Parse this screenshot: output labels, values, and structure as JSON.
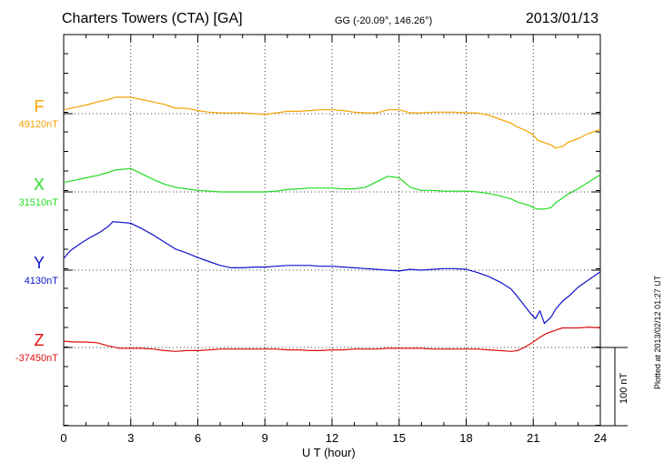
{
  "header": {
    "title": "Charters Towers (CTA)  [GA]",
    "coords": "GG (-20.09°, 146.26°)",
    "date": "2013/01/13"
  },
  "footer": {
    "plotted": "Plotted at 2013/02/12 01:27 UT",
    "scale_label": "100 nT"
  },
  "chart_data": {
    "type": "line",
    "title": "Charters Towers (CTA)  [GA]",
    "xlabel": "U T (hour)",
    "xlim": [
      0,
      24
    ],
    "xticks": [
      "0",
      "3",
      "6",
      "9",
      "12",
      "15",
      "18",
      "21",
      "24"
    ],
    "grid": true,
    "scale_bar_nT": 100,
    "series": [
      {
        "name": "F",
        "baseline_label": "49120nT",
        "baseline": 49120,
        "color": "#f5a200",
        "x": [
          0,
          0.5,
          1,
          1.5,
          2,
          2.3,
          3,
          3.5,
          4,
          4.5,
          5,
          5.5,
          6,
          6.5,
          7,
          7.5,
          8,
          8.5,
          9,
          9.5,
          10,
          10.5,
          11,
          11.5,
          12,
          12.5,
          13,
          13.5,
          14,
          14.5,
          15,
          15.5,
          16,
          16.5,
          17,
          17.5,
          18,
          18.5,
          19,
          19.5,
          20,
          20.3,
          20.7,
          21,
          21.2,
          21.5,
          21.8,
          22,
          22.3,
          22.6,
          23,
          23.5,
          24
        ],
        "y": [
          49125,
          49128,
          49131,
          49135,
          49138,
          49141,
          49141,
          49138,
          49135,
          49132,
          49127,
          49127,
          49124,
          49122,
          49121,
          49121,
          49121,
          49120,
          49119,
          49121,
          49123,
          49123,
          49124,
          49125,
          49125,
          49124,
          49122,
          49121,
          49121,
          49125,
          49125,
          49121,
          49121,
          49122,
          49122,
          49122,
          49121,
          49121,
          49118,
          49113,
          49108,
          49103,
          49098,
          49093,
          49086,
          49083,
          49080,
          49076,
          49078,
          49084,
          49088,
          49095,
          49100
        ]
      },
      {
        "name": "X",
        "baseline_label": "31510nT",
        "baseline": 31510,
        "color": "#22dd22",
        "x": [
          0,
          0.5,
          1,
          1.5,
          2,
          2.3,
          3,
          3.5,
          4,
          4.5,
          5,
          5.5,
          6,
          6.5,
          7,
          7.5,
          8,
          8.5,
          9,
          9.5,
          10,
          10.5,
          11,
          11.5,
          12,
          12.5,
          13,
          13.5,
          14,
          14.5,
          15,
          15.5,
          16,
          16.5,
          17,
          17.5,
          18,
          18.5,
          19,
          19.5,
          20,
          20.3,
          20.7,
          21,
          21.2,
          21.5,
          21.8,
          22,
          22.3,
          22.6,
          23,
          23.5,
          24
        ],
        "y": [
          31522,
          31525,
          31528,
          31531,
          31535,
          31538,
          31540,
          31533,
          31526,
          31520,
          31516,
          31514,
          31512,
          31511,
          31510,
          31510,
          31510,
          31510,
          31510,
          31511,
          31513,
          31514,
          31515,
          31515,
          31515,
          31514,
          31514,
          31516,
          31523,
          31530,
          31528,
          31516,
          31512,
          31512,
          31511,
          31511,
          31511,
          31510,
          31508,
          31505,
          31501,
          31497,
          31494,
          31490,
          31488,
          31488,
          31490,
          31496,
          31502,
          31508,
          31514,
          31523,
          31532
        ]
      },
      {
        "name": "Y",
        "baseline_label": "4130nT",
        "baseline": 4130,
        "color": "#1010cc",
        "x": [
          0,
          0.3,
          0.8,
          1.2,
          1.6,
          2,
          2.2,
          3,
          3.5,
          4,
          4.5,
          5,
          5.5,
          6,
          6.5,
          7,
          7.5,
          8,
          8.5,
          9,
          9.5,
          10,
          10.5,
          11,
          11.5,
          12,
          12.5,
          13,
          13.5,
          14,
          14.5,
          15,
          15.5,
          16,
          16.5,
          17,
          17.5,
          18,
          18.5,
          19,
          19.5,
          20,
          20.3,
          20.6,
          20.9,
          21.1,
          21.3,
          21.5,
          21.8,
          22,
          22.3,
          22.6,
          23,
          23.5,
          24
        ],
        "y": [
          4145,
          4155,
          4165,
          4172,
          4178,
          4186,
          4192,
          4190,
          4183,
          4175,
          4166,
          4157,
          4152,
          4146,
          4141,
          4136,
          4133,
          4133,
          4134,
          4134,
          4135,
          4136,
          4136,
          4136,
          4135,
          4135,
          4134,
          4133,
          4132,
          4131,
          4130,
          4129,
          4131,
          4130,
          4131,
          4132,
          4132,
          4131,
          4127,
          4122,
          4115,
          4106,
          4096,
          4085,
          4074,
          4068,
          4078,
          4062,
          4070,
          4080,
          4090,
          4097,
          4108,
          4118,
          4128
        ]
      },
      {
        "name": "Z",
        "baseline_label": "-37450nT",
        "baseline": -37450,
        "color": "#dd1010",
        "x": [
          0,
          0.5,
          1,
          1.5,
          2,
          2.5,
          3,
          3.5,
          4,
          4.5,
          5,
          5.5,
          6,
          6.5,
          7,
          7.5,
          8,
          8.5,
          9,
          9.5,
          10,
          10.5,
          11,
          11.5,
          12,
          12.5,
          13,
          13.5,
          14,
          14.5,
          15,
          15.5,
          16,
          16.5,
          17,
          17.5,
          18,
          18.5,
          19,
          19.5,
          20,
          20.3,
          20.6,
          21,
          21.3,
          21.6,
          22,
          22.3,
          22.7,
          23,
          23.5,
          24
        ],
        "y": [
          -37442,
          -37443,
          -37443,
          -37444,
          -37448,
          -37451,
          -37451,
          -37451,
          -37452,
          -37454,
          -37455,
          -37454,
          -37454,
          -37453,
          -37452,
          -37452,
          -37452,
          -37452,
          -37452,
          -37452,
          -37453,
          -37453,
          -37454,
          -37454,
          -37453,
          -37453,
          -37452,
          -37452,
          -37452,
          -37451,
          -37451,
          -37451,
          -37451,
          -37452,
          -37452,
          -37452,
          -37452,
          -37452,
          -37453,
          -37454,
          -37455,
          -37454,
          -37450,
          -37443,
          -37437,
          -37432,
          -37428,
          -37425,
          -37425,
          -37425,
          -37424,
          -37425
        ]
      }
    ]
  }
}
